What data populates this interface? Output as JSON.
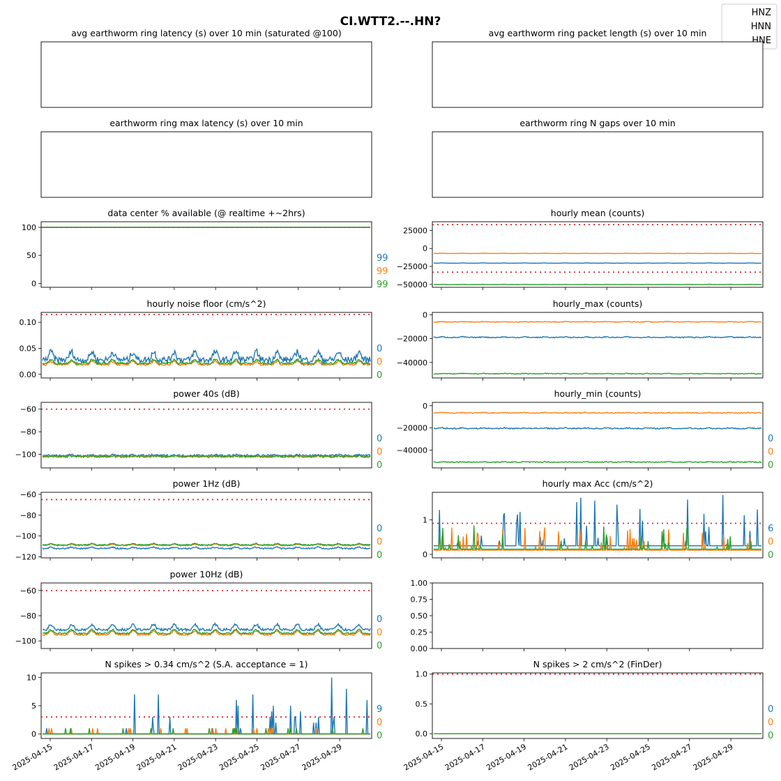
{
  "title": "CI.WTT2.--.HN?",
  "colors": {
    "HNZ": "#1f77b4",
    "HNN": "#ff7f0e",
    "HNE": "#2ca02c",
    "threshold": "#d62728"
  },
  "legend": {
    "placement": "top-right",
    "entries": [
      "HNZ",
      "HNN",
      "HNE"
    ]
  },
  "x_ticks": [
    "2025-04-15",
    "2025-04-17",
    "2025-04-19",
    "2025-04-21",
    "2025-04-23",
    "2025-04-25",
    "2025-04-27",
    "2025-04-29"
  ],
  "chart_data": [
    {
      "id": "p0",
      "type": "line",
      "title": "avg earthworm ring latency (s)   over 10 min (saturated @100)",
      "empty": true,
      "yticks": [],
      "series": [],
      "end_labels": []
    },
    {
      "id": "p1",
      "type": "line",
      "title": "avg earthworm ring packet length (s)   over 10 min",
      "empty": true,
      "yticks": [],
      "series": [],
      "end_labels": []
    },
    {
      "id": "p2",
      "type": "line",
      "title": "earthworm ring max latency (s)   over 10 min",
      "empty": true,
      "yticks": [],
      "series": [],
      "end_labels": []
    },
    {
      "id": "p3",
      "type": "line",
      "title": "earthworm ring N gaps   over 10 min",
      "empty": true,
      "yticks": [],
      "series": [],
      "end_labels": []
    },
    {
      "id": "p4",
      "type": "line",
      "title": "data center % available (@ realtime +~2hrs)",
      "ylim": [
        -7,
        110
      ],
      "yticks": [
        {
          "v": 0,
          "label": "0"
        },
        {
          "v": 50,
          "label": "50"
        },
        {
          "v": 100,
          "label": "100"
        }
      ],
      "thresholds": [
        100
      ],
      "series": [
        {
          "name": "HNZ",
          "base": 100,
          "amp": 0,
          "noise": 0
        },
        {
          "name": "HNN",
          "base": 100,
          "amp": 0,
          "noise": 0
        },
        {
          "name": "HNE",
          "base": 100,
          "amp": 0,
          "noise": 0
        }
      ],
      "end_labels": [
        "99",
        "99",
        "99"
      ]
    },
    {
      "id": "p5",
      "type": "line",
      "title": "hourly mean (counts)",
      "ylim": [
        -54000,
        37000
      ],
      "yticks": [
        {
          "v": 25000,
          "label": "25000"
        },
        {
          "v": 0,
          "label": "0"
        },
        {
          "v": -25000,
          "label": "−25000"
        },
        {
          "v": -50000,
          "label": "−50000"
        }
      ],
      "thresholds": [
        33000,
        -33000
      ],
      "series": [
        {
          "name": "HNZ",
          "base": -20500,
          "amp": 300,
          "noise": 150
        },
        {
          "name": "HNN",
          "base": -7000,
          "amp": 300,
          "noise": 150
        },
        {
          "name": "HNE",
          "base": -50200,
          "amp": 300,
          "noise": 150
        }
      ],
      "end_labels": []
    },
    {
      "id": "p6",
      "type": "line",
      "title": "hourly noise floor (cm/s^2)",
      "ylim": [
        -0.007,
        0.119
      ],
      "yticks": [
        {
          "v": 0.0,
          "label": "0.00"
        },
        {
          "v": 0.05,
          "label": "0.05"
        },
        {
          "v": 0.1,
          "label": "0.10"
        }
      ],
      "thresholds": [
        0.115
      ],
      "series": [
        {
          "name": "HNZ",
          "base": 0.028,
          "amp": 0.015,
          "noise": 0.006
        },
        {
          "name": "HNN",
          "base": 0.019,
          "amp": 0.006,
          "noise": 0.002
        },
        {
          "name": "HNE",
          "base": 0.021,
          "amp": 0.007,
          "noise": 0.002
        }
      ],
      "end_labels": [
        "0",
        "0",
        "0"
      ]
    },
    {
      "id": "p7",
      "type": "line",
      "title": "hourly_max (counts)",
      "ylim": [
        -53000,
        2000
      ],
      "yticks": [
        {
          "v": 0,
          "label": "0"
        },
        {
          "v": -20000,
          "label": "−20000"
        },
        {
          "v": -40000,
          "label": "−40000"
        }
      ],
      "thresholds": [],
      "series": [
        {
          "name": "HNZ",
          "base": -19000,
          "amp": 500,
          "noise": 400
        },
        {
          "name": "HNN",
          "base": -6000,
          "amp": 300,
          "noise": 300
        },
        {
          "name": "HNE",
          "base": -49500,
          "amp": 300,
          "noise": 300
        }
      ],
      "end_labels": []
    },
    {
      "id": "p8",
      "type": "line",
      "title": "power 40s (dB)",
      "ylim": [
        -112,
        -54
      ],
      "yticks": [
        {
          "v": -60,
          "label": "−60"
        },
        {
          "v": -80,
          "label": "−80"
        },
        {
          "v": -100,
          "label": "−100"
        }
      ],
      "thresholds": [
        -60
      ],
      "series": [
        {
          "name": "HNZ",
          "base": -101,
          "amp": 0.5,
          "noise": 0.8
        },
        {
          "name": "HNN",
          "base": -102,
          "amp": 0.5,
          "noise": 0.8
        },
        {
          "name": "HNE",
          "base": -102,
          "amp": 0.5,
          "noise": 0.8
        }
      ],
      "end_labels": [
        "0",
        "0",
        "0"
      ]
    },
    {
      "id": "p9",
      "type": "line",
      "title": "hourly_min (counts)",
      "ylim": [
        -56000,
        3000
      ],
      "yticks": [
        {
          "v": 0,
          "label": "0"
        },
        {
          "v": -20000,
          "label": "−20000"
        },
        {
          "v": -40000,
          "label": "−40000"
        }
      ],
      "thresholds": [],
      "series": [
        {
          "name": "HNZ",
          "base": -20500,
          "amp": 500,
          "noise": 500
        },
        {
          "name": "HNN",
          "base": -6500,
          "amp": 300,
          "noise": 400
        },
        {
          "name": "HNE",
          "base": -50800,
          "amp": 300,
          "noise": 400
        }
      ],
      "end_labels": [
        "0",
        "0",
        "0"
      ]
    },
    {
      "id": "p10",
      "type": "line",
      "title": "power 1Hz (dB)",
      "ylim": [
        -121,
        -58
      ],
      "yticks": [
        {
          "v": -60,
          "label": "−60"
        },
        {
          "v": -80,
          "label": "−80"
        },
        {
          "v": -100,
          "label": "−100"
        },
        {
          "v": -120,
          "label": "−120"
        }
      ],
      "thresholds": [
        -65
      ],
      "series": [
        {
          "name": "HNZ",
          "base": -112,
          "amp": 1.2,
          "noise": 0.6
        },
        {
          "name": "HNN",
          "base": -109,
          "amp": 1.2,
          "noise": 0.5
        },
        {
          "name": "HNE",
          "base": -108.5,
          "amp": 1.2,
          "noise": 0.5
        }
      ],
      "end_labels": [
        "0",
        "0",
        "0"
      ]
    },
    {
      "id": "p11",
      "type": "line",
      "title": "hourly max Acc (cm/s^2)",
      "ylim": [
        -0.1,
        1.8
      ],
      "yticks": [
        {
          "v": 0,
          "label": "0"
        },
        {
          "v": 1,
          "label": "1"
        }
      ],
      "thresholds": [
        0.9
      ],
      "series": [
        {
          "name": "HNZ",
          "base": 0.25,
          "amp": 0,
          "noise": 0,
          "spiky": 1.5
        },
        {
          "name": "HNN",
          "base": 0.12,
          "amp": 0,
          "noise": 0,
          "spiky": 0.7
        },
        {
          "name": "HNE",
          "base": 0.15,
          "amp": 0,
          "noise": 0,
          "spiky": 0.9
        }
      ],
      "end_labels": [
        "6",
        "0",
        "0"
      ]
    },
    {
      "id": "p12",
      "type": "line",
      "title": "power 10Hz (dB)",
      "ylim": [
        -106,
        -54
      ],
      "yticks": [
        {
          "v": -60,
          "label": "−60"
        },
        {
          "v": -80,
          "label": "−80"
        },
        {
          "v": -100,
          "label": "−100"
        }
      ],
      "thresholds": [
        -60
      ],
      "series": [
        {
          "name": "HNZ",
          "base": -91,
          "amp": 4,
          "noise": 1
        },
        {
          "name": "HNN",
          "base": -95,
          "amp": 3,
          "noise": 0.6
        },
        {
          "name": "HNE",
          "base": -94,
          "amp": 3,
          "noise": 0.6
        }
      ],
      "end_labels": [
        "0",
        "0",
        "0"
      ]
    },
    {
      "id": "p13",
      "type": "line",
      "title": "",
      "empty": true,
      "ylim": [
        0,
        1
      ],
      "yticks": [
        {
          "v": 0,
          "label": "0.00"
        },
        {
          "v": 0.25,
          "label": "0.25"
        },
        {
          "v": 0.5,
          "label": "0.50"
        },
        {
          "v": 0.75,
          "label": "0.75"
        },
        {
          "v": 1,
          "label": "1.00"
        }
      ],
      "series": [],
      "end_labels": []
    },
    {
      "id": "p14",
      "type": "line",
      "title": "N spikes > 0.34 cm/s^2 (S.A. acceptance = 1)",
      "ylim": [
        -0.8,
        10.8
      ],
      "yticks": [
        {
          "v": 0,
          "label": "0"
        },
        {
          "v": 5,
          "label": "5"
        },
        {
          "v": 10,
          "label": "10"
        }
      ],
      "thresholds": [
        3
      ],
      "series": [
        {
          "name": "HNZ",
          "base": 0,
          "amp": 0,
          "noise": 0,
          "spiky": 10,
          "integer": true
        },
        {
          "name": "HNN",
          "base": 0,
          "amp": 0,
          "noise": 0,
          "spiky": 1.5,
          "integer": true
        },
        {
          "name": "HNE",
          "base": 0,
          "amp": 0,
          "noise": 0,
          "spiky": 1,
          "integer": true
        }
      ],
      "end_labels": [
        "9",
        "0",
        "0"
      ]
    },
    {
      "id": "p15",
      "type": "line",
      "title": "N spikes > 2 cm/s^2 (FinDer)",
      "ylim": [
        -0.08,
        1.02
      ],
      "yticks": [
        {
          "v": 0,
          "label": "0.0"
        },
        {
          "v": 0.5,
          "label": "0.5"
        },
        {
          "v": 1,
          "label": "1.0"
        }
      ],
      "thresholds": [
        1
      ],
      "series": [
        {
          "name": "HNZ",
          "base": 0,
          "amp": 0,
          "noise": 0
        },
        {
          "name": "HNN",
          "base": 0,
          "amp": 0,
          "noise": 0
        },
        {
          "name": "HNE",
          "base": 0,
          "amp": 0,
          "noise": 0
        }
      ],
      "end_labels": [
        "0",
        "0",
        "0"
      ]
    }
  ]
}
